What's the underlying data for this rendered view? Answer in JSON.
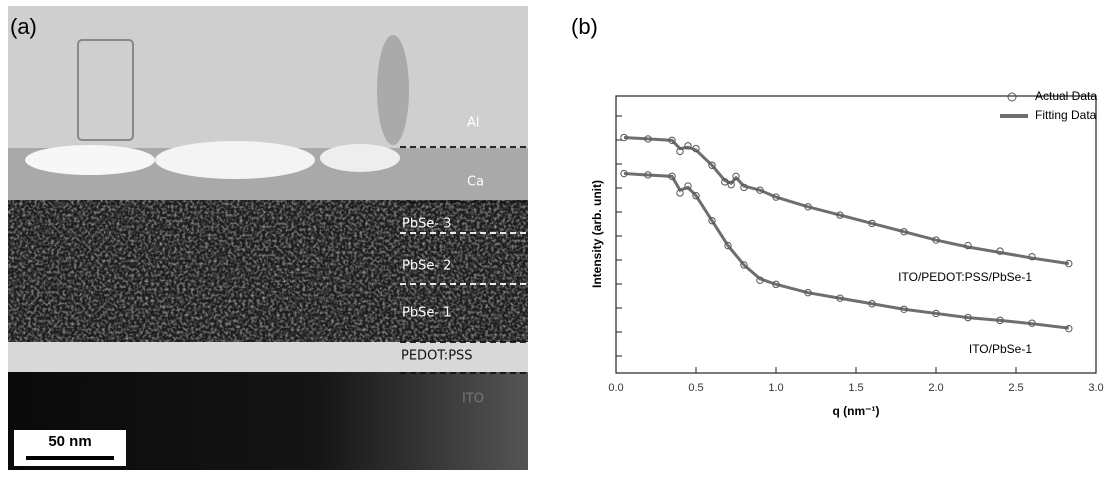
{
  "panel_labels": [
    "(a)",
    "(b)"
  ],
  "micrograph": {
    "layers": [
      "Al",
      "Ca",
      "PbSe- 3",
      "PbSe- 2",
      "PbSe- 1",
      "PEDOT:PSS",
      "ITO"
    ],
    "scale_bar": "50 nm"
  },
  "chart_data": {
    "type": "scatter-fit",
    "x_label": "q (nm⁻¹)",
    "y_label": "Intensity (arb. unit)",
    "xlim": [
      0,
      3
    ],
    "ylim": [
      0,
      10
    ],
    "xticks": [
      {
        "value": 0,
        "label": "0.0"
      },
      0.5,
      {
        "value": 1,
        "label": "1.0"
      },
      1.5,
      {
        "value": 2,
        "label": "2.0"
      },
      2.5,
      {
        "value": 3,
        "label": "3.0"
      }
    ],
    "legend": "upper right",
    "series": [
      {
        "name": "Actual Data",
        "color": "#555555",
        "marker": "circle"
      },
      {
        "name": "Fitting Data",
        "color": "#6e6e6e",
        "marker": "line"
      }
    ],
    "samples": [
      {
        "label": "ITO/PEDOT:PSS/PbSe-1",
        "x": [
          0.05,
          0.2,
          0.35,
          0.4,
          0.45,
          0.5,
          0.6,
          0.68,
          0.72,
          0.75,
          0.8,
          0.9,
          1.0,
          1.2,
          1.4,
          1.6,
          1.8,
          2.0,
          2.2,
          2.4,
          2.6,
          2.83
        ],
        "actual": [
          8.5,
          8.45,
          8.4,
          8.0,
          8.2,
          8.1,
          7.5,
          6.9,
          6.8,
          7.1,
          6.7,
          6.6,
          6.35,
          6.0,
          5.7,
          5.4,
          5.1,
          4.8,
          4.6,
          4.4,
          4.2,
          3.95
        ],
        "fit": [
          8.5,
          8.45,
          8.4,
          8.1,
          8.15,
          8.05,
          7.5,
          6.95,
          6.85,
          7.05,
          6.75,
          6.6,
          6.35,
          6.0,
          5.7,
          5.4,
          5.1,
          4.8,
          4.55,
          4.35,
          4.15,
          3.95
        ]
      },
      {
        "label": "ITO/PbSe-1",
        "x": [
          0.05,
          0.2,
          0.35,
          0.4,
          0.45,
          0.5,
          0.6,
          0.7,
          0.8,
          0.9,
          1.0,
          1.2,
          1.4,
          1.6,
          1.8,
          2.0,
          2.2,
          2.4,
          2.6,
          2.83
        ],
        "actual": [
          7.2,
          7.15,
          7.1,
          6.5,
          6.75,
          6.4,
          5.5,
          4.6,
          3.9,
          3.35,
          3.2,
          2.9,
          2.7,
          2.5,
          2.3,
          2.15,
          2.0,
          1.9,
          1.8,
          1.6
        ],
        "fit": [
          7.2,
          7.15,
          7.1,
          6.6,
          6.7,
          6.4,
          5.5,
          4.6,
          3.9,
          3.4,
          3.2,
          2.9,
          2.7,
          2.5,
          2.3,
          2.15,
          2.0,
          1.9,
          1.78,
          1.62
        ]
      }
    ]
  }
}
